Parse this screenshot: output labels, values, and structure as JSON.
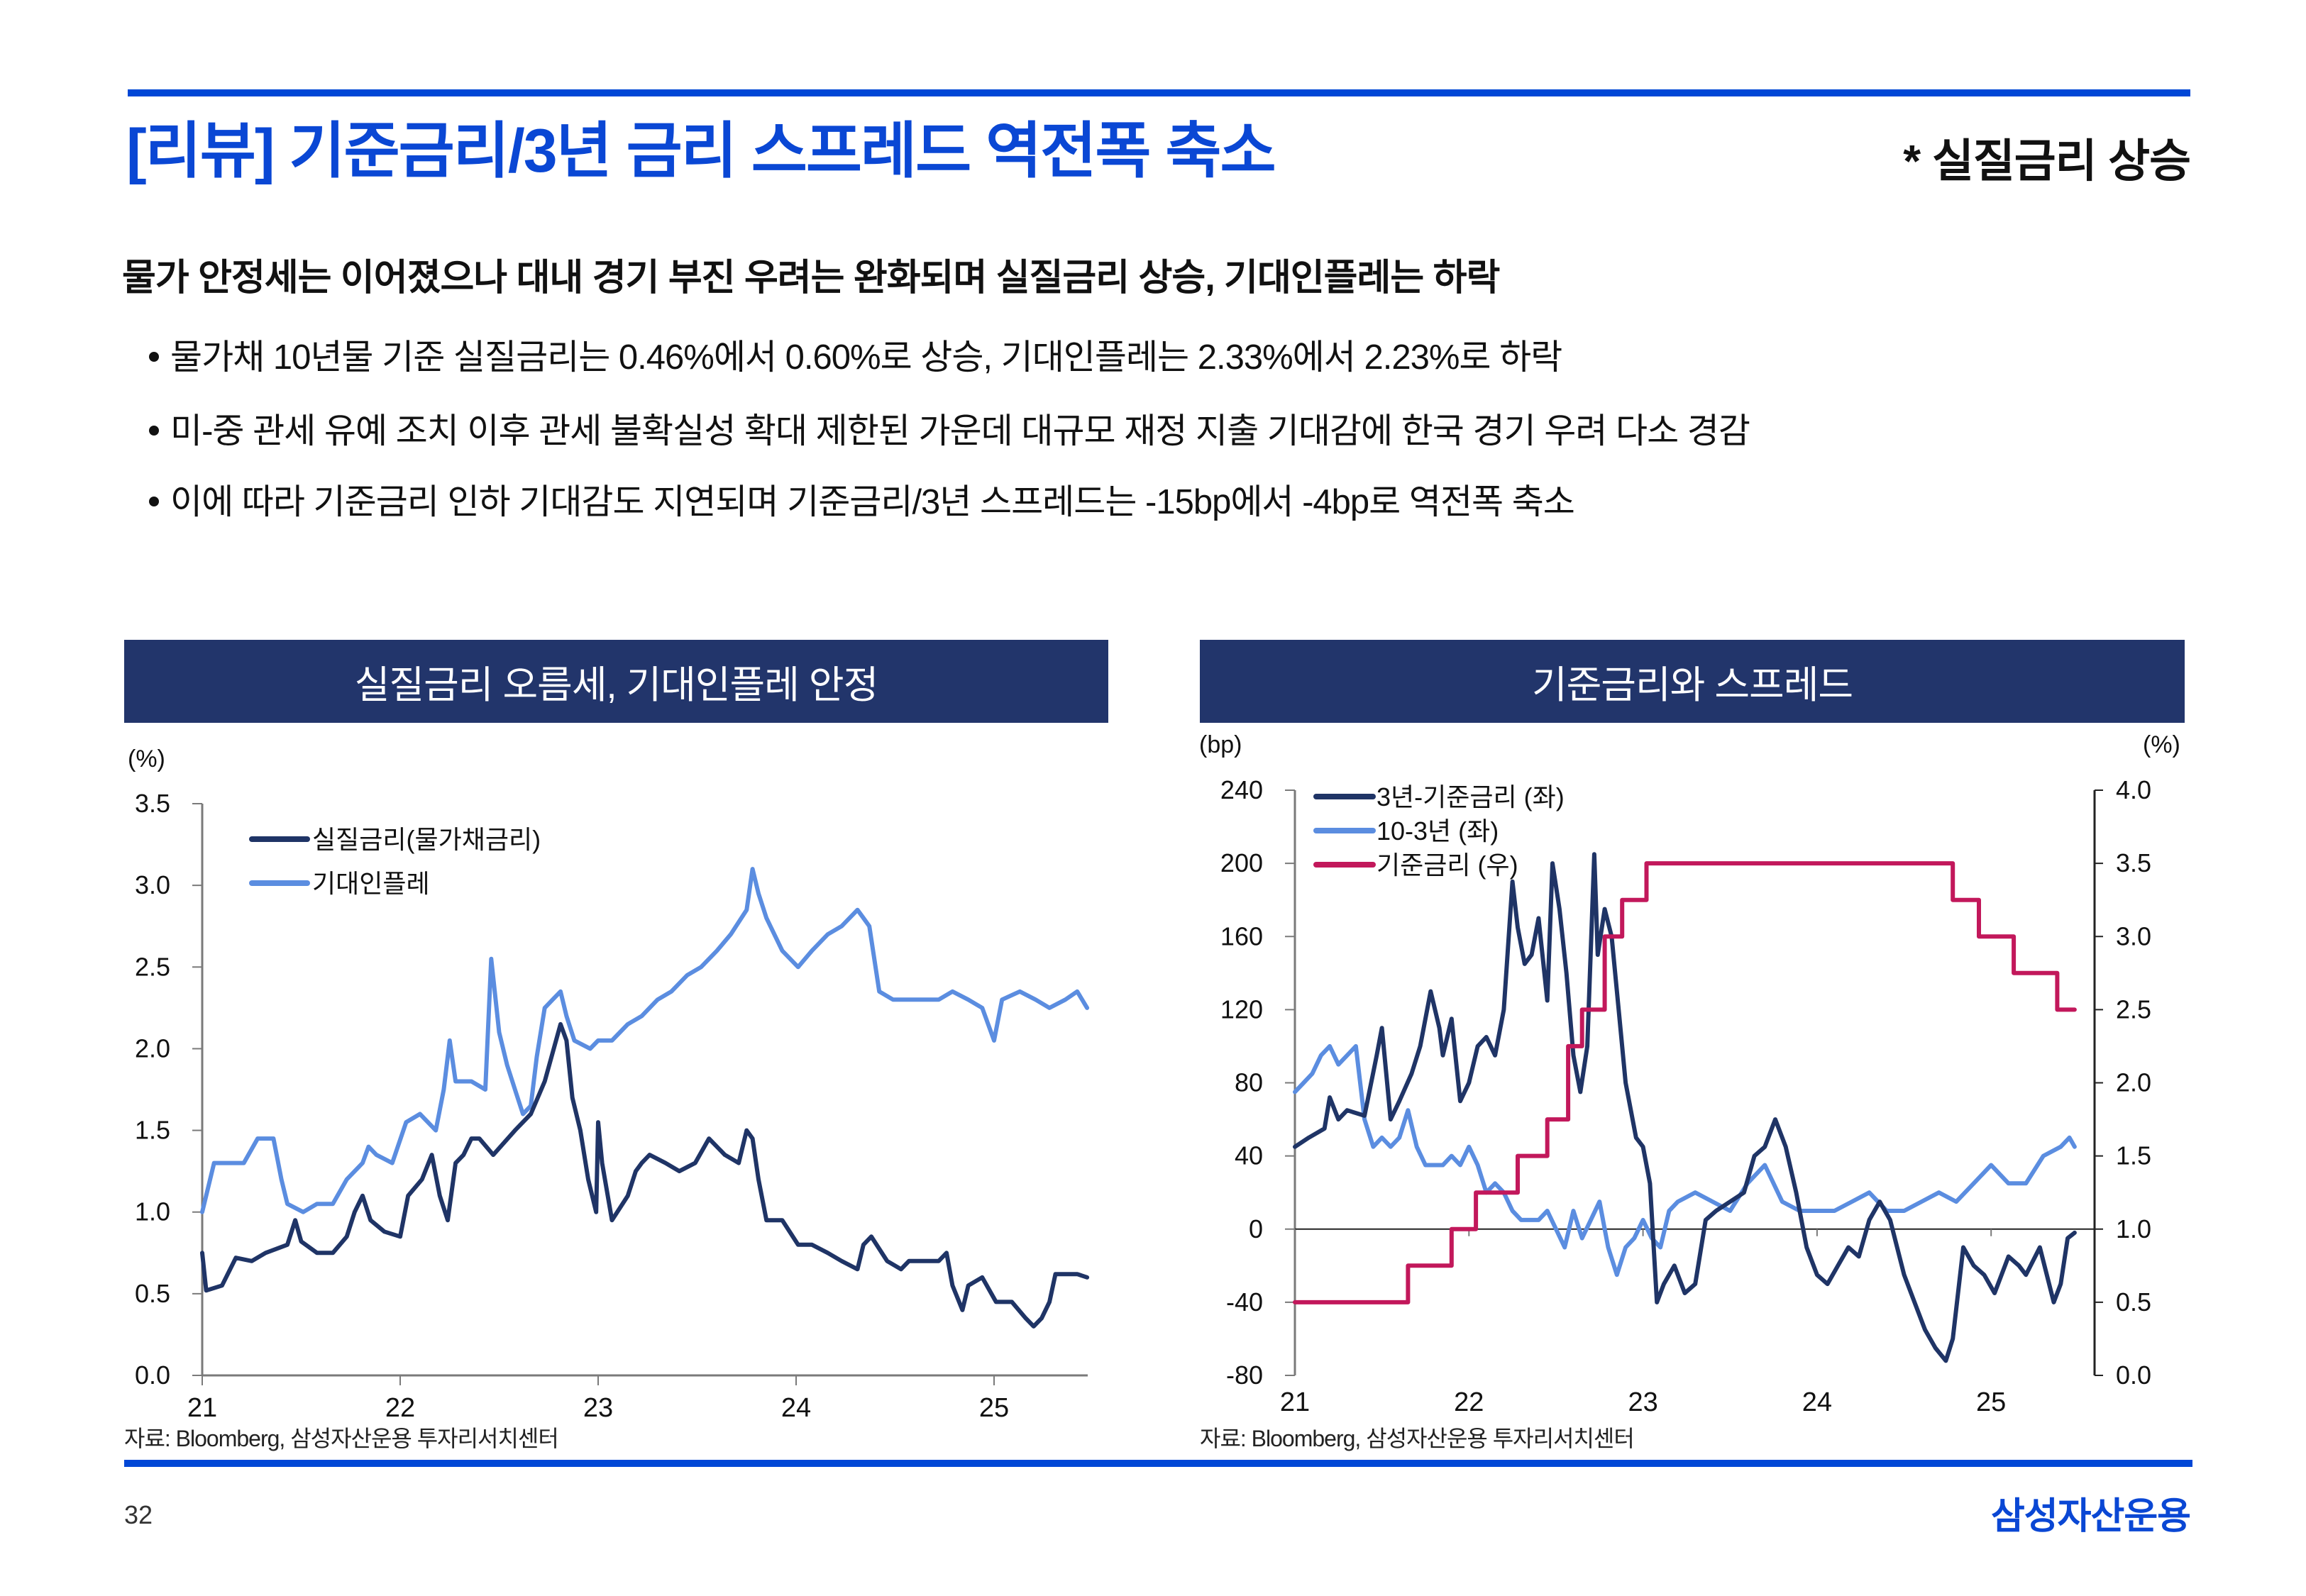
{
  "header": {
    "title": "[리뷰] 기준금리/3년 금리 스프레드 역전폭 축소",
    "tag": "* 실질금리 상승"
  },
  "summary": {
    "headline": "물가 안정세는 이어졌으나 대내 경기 부진 우려는 완화되며 실질금리 상승, 기대인플레는 하락",
    "bullets": [
      "물가채 10년물 기준 실질금리는 0.46%에서 0.60%로 상승, 기대인플레는 2.33%에서 2.23%로 하락",
      "미-중 관세 유예 조치 이후 관세 불확실성 확대 제한된 가운데 대규모 재정 지출 기대감에 한국 경기 우려 다소 경감",
      "이에 따라 기준금리 인하 기대감도 지연되며 기준금리/3년 스프레드는 -15bp에서 -4bp로 역전폭 축소"
    ]
  },
  "colors": {
    "accent": "#0a47d4",
    "panel_header": "#22356b",
    "dark_series": "#1f3466",
    "light_series": "#5b8de0",
    "base_rate": "#c2185b"
  },
  "chart_data": [
    {
      "type": "line",
      "panel_title": "실질금리 오름세, 기대인플레 안정",
      "ylabel": "(%)",
      "ylim": [
        0.0,
        3.5
      ],
      "yticks": [
        "0.0",
        "0.5",
        "1.0",
        "1.5",
        "2.0",
        "2.5",
        "3.0",
        "3.5"
      ],
      "ytick_values": [
        0.0,
        0.5,
        1.0,
        1.5,
        2.0,
        2.5,
        3.0,
        3.5
      ],
      "xlim": [
        21.0,
        25.47
      ],
      "xticks": [
        "21",
        "22",
        "23",
        "24",
        "25"
      ],
      "xtick_values": [
        21,
        22,
        23,
        24,
        25
      ],
      "legend_position": "top-left",
      "source": "자료: Bloomberg, 삼성자산운용 투자리서치센터",
      "series": [
        {
          "name": "실질금리(물가채금리)",
          "color": "#1f3466",
          "x": [
            21.0,
            21.02,
            21.1,
            21.17,
            21.25,
            21.32,
            21.43,
            21.47,
            21.5,
            21.58,
            21.66,
            21.73,
            21.77,
            21.81,
            21.85,
            21.92,
            22.0,
            22.04,
            22.11,
            22.16,
            22.2,
            22.24,
            22.28,
            22.32,
            22.36,
            22.4,
            22.47,
            22.58,
            22.66,
            22.73,
            22.81,
            22.84,
            22.87,
            22.91,
            22.95,
            22.99,
            23.0,
            23.02,
            23.07,
            23.15,
            23.19,
            23.22,
            23.26,
            23.34,
            23.41,
            23.49,
            23.56,
            23.64,
            23.71,
            23.75,
            23.78,
            23.81,
            23.85,
            23.93,
            24.01,
            24.08,
            24.16,
            24.23,
            24.31,
            24.34,
            24.38,
            24.46,
            24.53,
            24.57,
            24.64,
            24.72,
            24.76,
            24.79,
            24.84,
            24.87,
            24.94,
            25.01,
            25.09,
            25.16,
            25.2,
            25.24,
            25.28,
            25.31,
            25.42,
            25.47
          ],
          "values": [
            0.75,
            0.52,
            0.55,
            0.72,
            0.7,
            0.75,
            0.8,
            0.95,
            0.82,
            0.75,
            0.75,
            0.85,
            1.0,
            1.1,
            0.95,
            0.88,
            0.85,
            1.1,
            1.2,
            1.35,
            1.1,
            0.95,
            1.3,
            1.35,
            1.45,
            1.45,
            1.35,
            1.5,
            1.6,
            1.8,
            2.15,
            2.05,
            1.7,
            1.5,
            1.2,
            1.0,
            1.55,
            1.3,
            0.95,
            1.1,
            1.25,
            1.3,
            1.35,
            1.3,
            1.25,
            1.3,
            1.45,
            1.35,
            1.3,
            1.5,
            1.45,
            1.2,
            0.95,
            0.95,
            0.8,
            0.8,
            0.75,
            0.7,
            0.65,
            0.8,
            0.85,
            0.7,
            0.65,
            0.7,
            0.7,
            0.7,
            0.75,
            0.55,
            0.4,
            0.55,
            0.6,
            0.45,
            0.45,
            0.35,
            0.3,
            0.35,
            0.45,
            0.62,
            0.62,
            0.6
          ]
        },
        {
          "name": "기대인플레",
          "color": "#5b8de0",
          "x": [
            21.0,
            21.06,
            21.13,
            21.21,
            21.28,
            21.36,
            21.4,
            21.43,
            21.51,
            21.58,
            21.66,
            21.73,
            21.81,
            21.84,
            21.88,
            21.96,
            22.03,
            22.1,
            22.18,
            22.22,
            22.25,
            22.28,
            22.36,
            22.43,
            22.46,
            22.5,
            22.54,
            22.58,
            22.62,
            22.66,
            22.69,
            22.73,
            22.77,
            22.81,
            22.84,
            22.88,
            22.96,
            23.0,
            23.07,
            23.15,
            23.22,
            23.3,
            23.37,
            23.45,
            23.52,
            23.6,
            23.67,
            23.75,
            23.78,
            23.81,
            23.85,
            23.93,
            24.01,
            24.08,
            24.16,
            24.23,
            24.31,
            24.34,
            24.37,
            24.42,
            24.49,
            24.57,
            24.64,
            24.72,
            24.79,
            24.87,
            24.94,
            25.0,
            25.04,
            25.13,
            25.21,
            25.28,
            25.36,
            25.42,
            25.47
          ],
          "values": [
            1.0,
            1.3,
            1.3,
            1.3,
            1.45,
            1.45,
            1.2,
            1.05,
            1.0,
            1.05,
            1.05,
            1.2,
            1.3,
            1.4,
            1.35,
            1.3,
            1.55,
            1.6,
            1.5,
            1.75,
            2.05,
            1.8,
            1.8,
            1.75,
            2.55,
            2.1,
            1.9,
            1.75,
            1.6,
            1.65,
            1.95,
            2.25,
            2.3,
            2.35,
            2.2,
            2.05,
            2.0,
            2.05,
            2.05,
            2.15,
            2.2,
            2.3,
            2.35,
            2.45,
            2.5,
            2.6,
            2.7,
            2.85,
            3.1,
            2.95,
            2.8,
            2.6,
            2.5,
            2.6,
            2.7,
            2.75,
            2.85,
            2.8,
            2.75,
            2.35,
            2.3,
            2.3,
            2.3,
            2.3,
            2.35,
            2.3,
            2.25,
            2.05,
            2.3,
            2.35,
            2.3,
            2.25,
            2.3,
            2.35,
            2.25
          ]
        }
      ]
    },
    {
      "type": "line",
      "panel_title": "기준금리와 스프레드",
      "ylabel_left": "(bp)",
      "ylabel_right": "(%)",
      "ylim_left": [
        -80,
        240
      ],
      "ylim_right": [
        0.0,
        4.0
      ],
      "yticks_left": [
        "-80",
        "-40",
        "0",
        "40",
        "80",
        "120",
        "160",
        "200",
        "240"
      ],
      "ytick_values_left": [
        -80,
        -40,
        0,
        40,
        80,
        120,
        160,
        200,
        240
      ],
      "yticks_right": [
        "0.0",
        "0.5",
        "1.0",
        "1.5",
        "2.0",
        "2.5",
        "3.0",
        "3.5",
        "4.0"
      ],
      "ytick_values_right": [
        0.0,
        0.5,
        1.0,
        1.5,
        2.0,
        2.5,
        3.0,
        3.5,
        4.0
      ],
      "xlim": [
        21.0,
        25.48
      ],
      "xticks": [
        "21",
        "22",
        "23",
        "24",
        "25"
      ],
      "xtick_values": [
        21,
        22,
        23,
        24,
        25
      ],
      "legend_position": "top-left",
      "source": "자료: Bloomberg, 삼성자산운용 투자리서치센터",
      "series": [
        {
          "name": "3년-기준금리 (좌)",
          "axis": "left",
          "color": "#1f3466",
          "x": [
            21.0,
            21.08,
            21.17,
            21.2,
            21.25,
            21.3,
            21.4,
            21.47,
            21.5,
            21.55,
            21.6,
            21.67,
            21.72,
            21.78,
            21.83,
            21.85,
            21.9,
            21.95,
            22.0,
            22.05,
            22.1,
            22.15,
            22.2,
            22.25,
            22.28,
            22.32,
            22.36,
            22.4,
            22.45,
            22.48,
            22.52,
            22.56,
            22.6,
            22.64,
            22.68,
            22.72,
            22.74,
            22.78,
            22.82,
            22.86,
            22.9,
            22.96,
            23.0,
            23.04,
            23.08,
            23.12,
            23.18,
            23.24,
            23.3,
            23.36,
            23.42,
            23.5,
            23.58,
            23.64,
            23.7,
            23.76,
            23.82,
            23.88,
            23.94,
            24.0,
            24.06,
            24.12,
            24.18,
            24.24,
            24.3,
            24.36,
            24.42,
            24.5,
            24.56,
            24.62,
            24.68,
            24.74,
            24.78,
            24.84,
            24.9,
            24.96,
            25.02,
            25.1,
            25.16,
            25.2,
            25.28,
            25.36,
            25.4,
            25.44,
            25.48
          ],
          "values": [
            45,
            50,
            55,
            72,
            60,
            65,
            62,
            95,
            110,
            60,
            70,
            85,
            100,
            130,
            110,
            95,
            115,
            70,
            80,
            100,
            105,
            95,
            120,
            190,
            165,
            145,
            150,
            170,
            125,
            200,
            175,
            140,
            95,
            75,
            100,
            205,
            150,
            175,
            160,
            120,
            80,
            50,
            45,
            25,
            -40,
            -30,
            -20,
            -35,
            -30,
            5,
            10,
            15,
            20,
            40,
            45,
            60,
            45,
            20,
            -10,
            -25,
            -30,
            -20,
            -10,
            -15,
            5,
            15,
            5,
            -25,
            -40,
            -55,
            -65,
            -72,
            -60,
            -10,
            -20,
            -25,
            -35,
            -15,
            -20,
            -25,
            -10,
            -40,
            -30,
            -5,
            -2
          ]
        },
        {
          "name": "10-3년 (좌)",
          "axis": "left",
          "color": "#5b8de0",
          "x": [
            21.0,
            21.05,
            21.1,
            21.15,
            21.2,
            21.25,
            21.3,
            21.35,
            21.4,
            21.45,
            21.5,
            21.55,
            21.6,
            21.65,
            21.7,
            21.75,
            21.8,
            21.85,
            21.9,
            21.95,
            22.0,
            22.05,
            22.1,
            22.15,
            22.2,
            22.25,
            22.3,
            22.35,
            22.4,
            22.45,
            22.5,
            22.55,
            22.6,
            22.65,
            22.7,
            22.75,
            22.8,
            22.85,
            22.9,
            22.95,
            23.0,
            23.05,
            23.1,
            23.15,
            23.2,
            23.3,
            23.4,
            23.5,
            23.6,
            23.7,
            23.8,
            23.9,
            24.0,
            24.1,
            24.2,
            24.3,
            24.4,
            24.5,
            24.6,
            24.7,
            24.8,
            24.9,
            25.0,
            25.1,
            25.2,
            25.3,
            25.4,
            25.45,
            25.48
          ],
          "values": [
            75,
            80,
            85,
            95,
            100,
            90,
            95,
            100,
            60,
            45,
            50,
            45,
            50,
            65,
            45,
            35,
            35,
            35,
            40,
            35,
            45,
            35,
            20,
            25,
            20,
            10,
            5,
            5,
            5,
            10,
            0,
            -10,
            10,
            -5,
            5,
            15,
            -10,
            -25,
            -10,
            -5,
            5,
            -5,
            -10,
            10,
            15,
            20,
            15,
            10,
            25,
            35,
            15,
            10,
            10,
            10,
            15,
            20,
            10,
            10,
            15,
            20,
            15,
            25,
            35,
            25,
            25,
            40,
            45,
            50,
            45
          ]
        },
        {
          "name": "기준금리 (우)",
          "axis": "right",
          "color": "#c2185b",
          "step": true,
          "x": [
            21.0,
            21.65,
            21.9,
            22.04,
            22.28,
            22.45,
            22.57,
            22.65,
            22.78,
            22.88,
            23.02,
            24.78,
            24.93,
            25.13,
            25.38,
            25.48
          ],
          "values": [
            0.5,
            0.75,
            1.0,
            1.25,
            1.5,
            1.75,
            2.25,
            2.5,
            3.0,
            3.25,
            3.5,
            3.25,
            3.0,
            2.75,
            2.5,
            2.5
          ]
        }
      ]
    }
  ],
  "footer": {
    "page_number": "32",
    "logo_text": "삼성자산운용"
  }
}
